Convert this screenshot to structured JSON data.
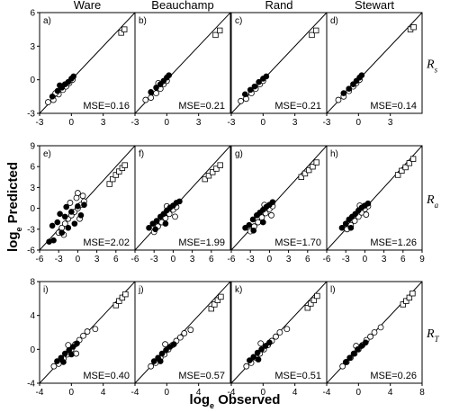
{
  "axes": {
    "xlabel_main": "log",
    "xlabel_sub": "e",
    "xlabel_rest": " Observed",
    "ylabel_main": "log",
    "ylabel_sub": "e",
    "ylabel_rest": " Predicted"
  },
  "columns": [
    "Ware",
    "Beauchamp",
    "Rand",
    "Stewart"
  ],
  "rows": [
    {
      "label_main": "R",
      "label_sub": "s"
    },
    {
      "label_main": "R",
      "label_sub": "a"
    },
    {
      "label_main": "R",
      "label_sub": "T"
    }
  ],
  "colors": {
    "ink": "#000000",
    "paper": "#ffffff"
  },
  "chart_data": [
    {
      "panel": "a)",
      "type": "scatter",
      "mse": "MSE=0.16",
      "xlim": [
        -3,
        6
      ],
      "ylim": [
        -3,
        6
      ],
      "xticks": [
        "-3",
        "0",
        "3"
      ],
      "yticks": [
        "-3",
        "0",
        "3",
        "6"
      ],
      "open_squares": [
        [
          4.7,
          4.2
        ],
        [
          5.0,
          4.5
        ]
      ],
      "filled_circles": [
        [
          -1.8,
          -1.5
        ],
        [
          -1.3,
          -1.0
        ],
        [
          -0.9,
          -0.7
        ],
        [
          -0.6,
          -0.4
        ],
        [
          -0.3,
          -0.2
        ],
        [
          0.0,
          0.1
        ],
        [
          0.2,
          0.3
        ],
        [
          -1.1,
          -0.5
        ]
      ],
      "open_circles": [
        [
          -2.2,
          -2.0
        ],
        [
          -1.7,
          -1.8
        ],
        [
          -1.2,
          -1.3
        ],
        [
          -0.8,
          -0.9
        ],
        [
          -0.5,
          -0.6
        ],
        [
          -0.2,
          -0.3
        ],
        [
          0.1,
          0.0
        ],
        [
          -1.5,
          -1.2
        ]
      ]
    },
    {
      "panel": "b)",
      "type": "scatter",
      "mse": "MSE=0.21",
      "xlim": [
        -3,
        6
      ],
      "ylim": [
        -3,
        6
      ],
      "xticks": [
        "-3",
        "0",
        "3"
      ],
      "yticks": [],
      "open_squares": [
        [
          4.6,
          4.0
        ],
        [
          5.0,
          4.4
        ]
      ],
      "filled_circles": [
        [
          -1.5,
          -1.1
        ],
        [
          -1.0,
          -0.7
        ],
        [
          -0.6,
          -0.4
        ],
        [
          -0.3,
          -0.1
        ],
        [
          0.0,
          0.2
        ],
        [
          0.2,
          0.4
        ]
      ],
      "open_circles": [
        [
          -2.0,
          -1.8
        ],
        [
          -1.5,
          -1.6
        ],
        [
          -1.0,
          -1.2
        ],
        [
          -0.6,
          -0.8
        ],
        [
          -0.3,
          -0.4
        ],
        [
          0.0,
          -0.1
        ],
        [
          -0.8,
          -0.3
        ]
      ]
    },
    {
      "panel": "c)",
      "type": "scatter",
      "mse": "MSE=0.21",
      "xlim": [
        -3,
        6
      ],
      "ylim": [
        -3,
        6
      ],
      "xticks": [
        "-3",
        "0",
        "3"
      ],
      "yticks": [],
      "open_squares": [
        [
          4.6,
          4.0
        ],
        [
          5.0,
          4.4
        ]
      ],
      "filled_circles": [
        [
          -1.7,
          -1.3
        ],
        [
          -1.2,
          -0.9
        ],
        [
          -0.8,
          -0.6
        ],
        [
          -0.4,
          -0.2
        ],
        [
          0.0,
          0.1
        ],
        [
          0.3,
          0.3
        ]
      ],
      "open_circles": [
        [
          -2.1,
          -1.9
        ],
        [
          -1.6,
          -1.7
        ],
        [
          -1.1,
          -1.2
        ],
        [
          -0.7,
          -0.8
        ],
        [
          -0.3,
          -0.4
        ],
        [
          0.0,
          -0.1
        ]
      ]
    },
    {
      "panel": "d)",
      "type": "scatter",
      "mse": "MSE=0.14",
      "xlim": [
        -3,
        6
      ],
      "ylim": [
        -3,
        6
      ],
      "xticks": [
        "-3",
        "0",
        "3"
      ],
      "yticks": [],
      "open_squares": [
        [
          4.9,
          4.5
        ],
        [
          5.2,
          4.7
        ]
      ],
      "filled_circles": [
        [
          -1.4,
          -1.2
        ],
        [
          -0.9,
          -0.8
        ],
        [
          -0.5,
          -0.4
        ],
        [
          -0.2,
          -0.1
        ],
        [
          0.1,
          0.2
        ],
        [
          0.3,
          0.4
        ]
      ],
      "open_circles": [
        [
          -1.9,
          -1.8
        ],
        [
          -1.4,
          -1.5
        ],
        [
          -0.9,
          -1.0
        ],
        [
          -0.5,
          -0.6
        ],
        [
          -0.2,
          -0.3
        ],
        [
          0.1,
          0.0
        ]
      ]
    },
    {
      "panel": "e)",
      "type": "scatter",
      "mse": "MSE=2.02",
      "xlim": [
        -6,
        9
      ],
      "ylim": [
        -6,
        9
      ],
      "xticks": [
        "-6",
        "-3",
        "0",
        "3",
        "6"
      ],
      "yticks": [
        "-6",
        "-3",
        "0",
        "3",
        "6",
        "9"
      ],
      "open_squares": [
        [
          5.0,
          3.5
        ],
        [
          5.5,
          4.2
        ],
        [
          6.0,
          4.8
        ],
        [
          6.5,
          5.3
        ],
        [
          7.0,
          5.8
        ],
        [
          7.4,
          6.2
        ]
      ],
      "filled_circles": [
        [
          -4.5,
          -4.8
        ],
        [
          -3.8,
          -4.6
        ],
        [
          -4.0,
          -2.5
        ],
        [
          -3.2,
          -2.0
        ],
        [
          -2.5,
          -3.5
        ],
        [
          -2.0,
          -1.2
        ],
        [
          -1.5,
          -2.8
        ],
        [
          -1.0,
          -0.5
        ],
        [
          -0.5,
          -2.2
        ],
        [
          0.0,
          0.3
        ],
        [
          0.5,
          -1.0
        ],
        [
          1.0,
          0.5
        ],
        [
          -2.8,
          -0.8
        ],
        [
          -1.8,
          0.2
        ]
      ],
      "open_circles": [
        [
          -3.0,
          -3.5
        ],
        [
          -2.5,
          -2.8
        ],
        [
          -2.0,
          -2.2
        ],
        [
          -1.5,
          -1.5
        ],
        [
          -1.0,
          -1.0
        ],
        [
          -0.5,
          -0.5
        ],
        [
          0.0,
          0.0
        ],
        [
          0.5,
          0.5
        ],
        [
          1.0,
          1.0
        ],
        [
          -1.2,
          0.8
        ],
        [
          -0.2,
          1.5
        ],
        [
          0.3,
          -1.5
        ],
        [
          0.8,
          1.8
        ],
        [
          -2.2,
          -3.8
        ],
        [
          0.0,
          2.2
        ]
      ]
    },
    {
      "panel": "f)",
      "type": "scatter",
      "mse": "MSE=1.99",
      "xlim": [
        -6,
        9
      ],
      "ylim": [
        -6,
        9
      ],
      "xticks": [
        "-6",
        "-3",
        "0",
        "3",
        "6"
      ],
      "yticks": [],
      "open_squares": [
        [
          5.0,
          4.2
        ],
        [
          5.6,
          4.7
        ],
        [
          6.2,
          5.2
        ],
        [
          6.8,
          5.7
        ],
        [
          7.4,
          6.2
        ]
      ],
      "filled_circles": [
        [
          -3.8,
          -2.8
        ],
        [
          -3.2,
          -2.2
        ],
        [
          -2.6,
          -1.8
        ],
        [
          -2.0,
          -1.2
        ],
        [
          -1.5,
          -0.8
        ],
        [
          -1.0,
          -0.3
        ],
        [
          -0.5,
          0.1
        ],
        [
          0.0,
          0.4
        ],
        [
          0.5,
          0.8
        ],
        [
          1.0,
          1.0
        ],
        [
          -2.8,
          -3.0
        ],
        [
          -1.2,
          -2.2
        ]
      ],
      "open_circles": [
        [
          -3.0,
          -3.4
        ],
        [
          -2.4,
          -2.6
        ],
        [
          -1.8,
          -2.0
        ],
        [
          -1.2,
          -1.4
        ],
        [
          -0.6,
          -0.8
        ],
        [
          0.0,
          -0.2
        ],
        [
          0.5,
          0.2
        ],
        [
          -1.0,
          0.3
        ],
        [
          0.3,
          -1.2
        ]
      ]
    },
    {
      "panel": "g)",
      "type": "scatter",
      "mse": "MSE=1.70",
      "xlim": [
        -6,
        9
      ],
      "ylim": [
        -6,
        9
      ],
      "xticks": [
        "-6",
        "-3",
        "0",
        "3",
        "6"
      ],
      "yticks": [],
      "open_squares": [
        [
          5.0,
          4.5
        ],
        [
          5.6,
          5.0
        ],
        [
          6.2,
          5.5
        ],
        [
          6.8,
          6.0
        ],
        [
          7.4,
          6.6
        ]
      ],
      "filled_circles": [
        [
          -3.8,
          -2.8
        ],
        [
          -3.2,
          -2.4
        ],
        [
          -2.6,
          -1.6
        ],
        [
          -2.0,
          -1.0
        ],
        [
          -1.5,
          -0.6
        ],
        [
          -1.0,
          -0.2
        ],
        [
          -0.5,
          0.2
        ],
        [
          0.0,
          0.5
        ],
        [
          0.5,
          0.9
        ],
        [
          -2.5,
          -3.2
        ],
        [
          -1.0,
          -2.0
        ]
      ],
      "open_circles": [
        [
          -3.0,
          -3.3
        ],
        [
          -2.4,
          -2.6
        ],
        [
          -1.8,
          -2.0
        ],
        [
          -1.2,
          -1.3
        ],
        [
          -0.6,
          -0.7
        ],
        [
          0.0,
          -0.1
        ],
        [
          0.5,
          0.3
        ],
        [
          -0.8,
          0.5
        ],
        [
          0.3,
          -1.0
        ]
      ]
    },
    {
      "panel": "h)",
      "type": "scatter",
      "mse": "MSE=1.26",
      "xlim": [
        -6,
        9
      ],
      "ylim": [
        -6,
        9
      ],
      "xticks": [
        "-6",
        "-3",
        "0",
        "3",
        "6",
        "9"
      ],
      "yticks": [],
      "open_squares": [
        [
          5.2,
          4.8
        ],
        [
          5.8,
          5.4
        ],
        [
          6.4,
          5.9
        ],
        [
          7.0,
          6.5
        ],
        [
          7.6,
          7.1
        ]
      ],
      "filled_circles": [
        [
          -3.6,
          -2.8
        ],
        [
          -3.0,
          -2.2
        ],
        [
          -2.5,
          -1.6
        ],
        [
          -2.0,
          -1.2
        ],
        [
          -1.5,
          -0.8
        ],
        [
          -1.0,
          -0.3
        ],
        [
          -0.5,
          0.1
        ],
        [
          0.0,
          0.4
        ],
        [
          0.5,
          0.7
        ],
        [
          -2.2,
          -2.8
        ]
      ],
      "open_circles": [
        [
          -2.8,
          -3.0
        ],
        [
          -2.2,
          -2.4
        ],
        [
          -1.6,
          -1.8
        ],
        [
          -1.0,
          -1.2
        ],
        [
          -0.5,
          -0.6
        ],
        [
          0.0,
          -0.1
        ],
        [
          0.5,
          0.3
        ],
        [
          -0.8,
          0.4
        ],
        [
          0.2,
          -0.9
        ]
      ]
    },
    {
      "panel": "i)",
      "type": "scatter",
      "mse": "MSE=0.40",
      "xlim": [
        -4,
        8
      ],
      "ylim": [
        -4,
        8
      ],
      "xticks": [
        "-4",
        "0",
        "4"
      ],
      "yticks": [
        "-4",
        "0",
        "4",
        "8"
      ],
      "open_squares": [
        [
          5.6,
          5.2
        ],
        [
          6.0,
          5.7
        ],
        [
          6.4,
          6.1
        ],
        [
          6.8,
          6.5
        ]
      ],
      "filled_circles": [
        [
          -1.8,
          -1.4
        ],
        [
          -1.3,
          -1.0
        ],
        [
          -0.8,
          -0.5
        ],
        [
          -0.3,
          -0.1
        ],
        [
          0.2,
          0.3
        ],
        [
          0.7,
          0.7
        ],
        [
          -1.0,
          -1.5
        ],
        [
          0.0,
          -0.6
        ]
      ],
      "open_circles": [
        [
          -2.2,
          -2.0
        ],
        [
          -1.6,
          -1.7
        ],
        [
          -1.0,
          -1.1
        ],
        [
          -0.5,
          -0.6
        ],
        [
          0.0,
          0.0
        ],
        [
          0.5,
          0.6
        ],
        [
          1.0,
          1.1
        ],
        [
          1.5,
          1.6
        ],
        [
          2.0,
          2.1
        ],
        [
          -0.4,
          0.5
        ],
        [
          0.6,
          -0.5
        ],
        [
          3.0,
          2.4
        ]
      ]
    },
    {
      "panel": "j)",
      "type": "scatter",
      "mse": "MSE=0.57",
      "xlim": [
        -4,
        8
      ],
      "ylim": [
        -4,
        8
      ],
      "xticks": [
        "-4",
        "0",
        "4"
      ],
      "yticks": [],
      "open_squares": [
        [
          5.6,
          4.8
        ],
        [
          6.0,
          5.3
        ],
        [
          6.4,
          5.8
        ],
        [
          6.8,
          6.2
        ]
      ],
      "filled_circles": [
        [
          -1.6,
          -1.4
        ],
        [
          -1.1,
          -1.0
        ],
        [
          -0.6,
          -0.5
        ],
        [
          -0.1,
          -0.1
        ],
        [
          0.4,
          0.3
        ],
        [
          0.9,
          0.6
        ],
        [
          -0.8,
          -1.4
        ]
      ],
      "open_circles": [
        [
          -2.0,
          -2.0
        ],
        [
          -1.4,
          -1.6
        ],
        [
          -0.8,
          -1.0
        ],
        [
          -0.3,
          -0.6
        ],
        [
          0.2,
          0.0
        ],
        [
          0.7,
          0.5
        ],
        [
          1.2,
          1.0
        ],
        [
          1.7,
          1.4
        ],
        [
          2.2,
          1.9
        ],
        [
          3.0,
          2.3
        ],
        [
          -0.2,
          0.6
        ]
      ]
    },
    {
      "panel": "k)",
      "type": "scatter",
      "mse": "MSE=0.51",
      "xlim": [
        -4,
        8
      ],
      "ylim": [
        -4,
        8
      ],
      "xticks": [
        "-4",
        "0",
        "4"
      ],
      "yticks": [],
      "open_squares": [
        [
          5.6,
          4.9
        ],
        [
          6.0,
          5.4
        ],
        [
          6.4,
          5.8
        ],
        [
          6.8,
          6.3
        ]
      ],
      "filled_circles": [
        [
          -1.7,
          -1.3
        ],
        [
          -1.2,
          -0.9
        ],
        [
          -0.7,
          -0.4
        ],
        [
          -0.2,
          0.0
        ],
        [
          0.3,
          0.4
        ],
        [
          0.8,
          0.8
        ],
        [
          -0.6,
          -1.2
        ]
      ],
      "open_circles": [
        [
          -2.1,
          -2.0
        ],
        [
          -1.5,
          -1.6
        ],
        [
          -0.9,
          -1.0
        ],
        [
          -0.4,
          -0.5
        ],
        [
          0.1,
          0.0
        ],
        [
          0.6,
          0.5
        ],
        [
          1.1,
          1.0
        ],
        [
          1.6,
          1.5
        ],
        [
          2.1,
          2.0
        ],
        [
          3.0,
          2.4
        ],
        [
          -0.3,
          0.7
        ]
      ]
    },
    {
      "panel": "l)",
      "type": "scatter",
      "mse": "MSE=0.26",
      "xlim": [
        -4,
        8
      ],
      "ylim": [
        -4,
        8
      ],
      "xticks": [
        "-4",
        "0",
        "4",
        "8"
      ],
      "yticks": [],
      "open_squares": [
        [
          5.6,
          5.3
        ],
        [
          6.0,
          5.7
        ],
        [
          6.4,
          6.1
        ],
        [
          6.8,
          6.6
        ]
      ],
      "filled_circles": [
        [
          -1.6,
          -1.5
        ],
        [
          -1.1,
          -1.0
        ],
        [
          -0.6,
          -0.5
        ],
        [
          -0.1,
          0.0
        ],
        [
          0.4,
          0.4
        ],
        [
          0.9,
          0.8
        ]
      ],
      "open_circles": [
        [
          -2.0,
          -2.0
        ],
        [
          -1.5,
          -1.5
        ],
        [
          -1.0,
          -1.0
        ],
        [
          -0.5,
          -0.5
        ],
        [
          0.0,
          0.0
        ],
        [
          0.5,
          0.5
        ],
        [
          1.0,
          1.1
        ],
        [
          1.5,
          1.5
        ],
        [
          2.0,
          2.0
        ],
        [
          2.8,
          2.6
        ],
        [
          -0.3,
          0.4
        ]
      ]
    }
  ]
}
